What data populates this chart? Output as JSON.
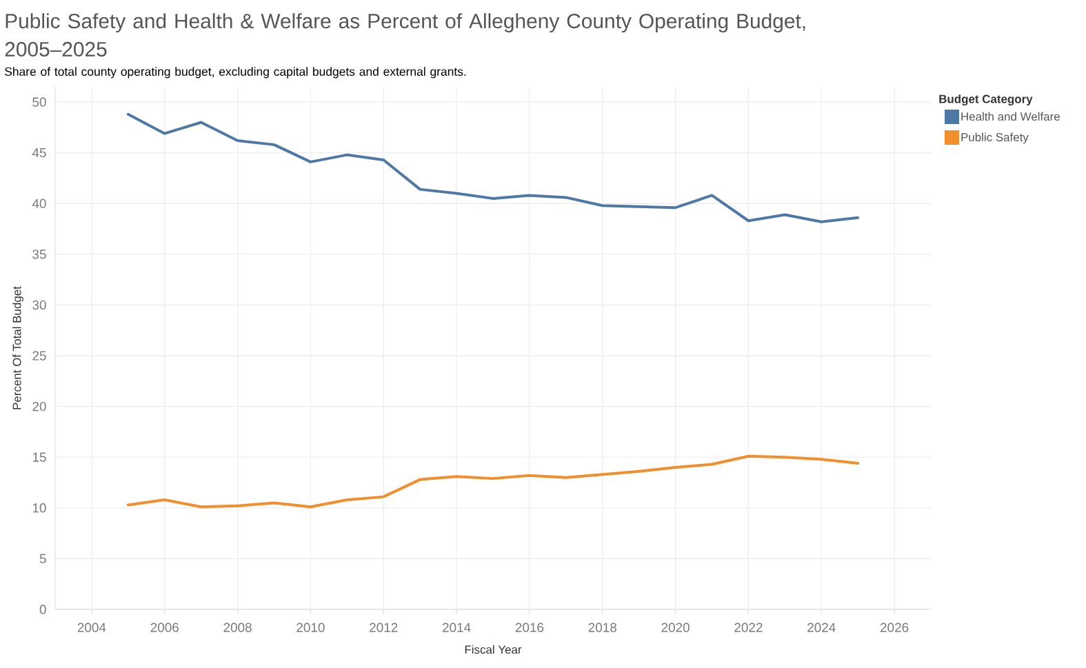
{
  "chart_data": {
    "type": "line",
    "title": "Public Safety and Health & Welfare as Percent of Allegheny County Operating Budget, 2005–2025",
    "subtitle": "Share of total county operating budget, excluding capital budgets and external grants.",
    "xlabel": "Fiscal Year",
    "ylabel": "Percent Of Total Budget",
    "legend_title": "Budget Category",
    "x": [
      2005,
      2006,
      2007,
      2008,
      2009,
      2010,
      2011,
      2012,
      2013,
      2014,
      2015,
      2016,
      2017,
      2018,
      2019,
      2020,
      2021,
      2022,
      2023,
      2024,
      2025
    ],
    "series": [
      {
        "name": "Health and Welfare",
        "color": "#4e79a7",
        "values": [
          48.8,
          46.9,
          48.0,
          46.2,
          45.8,
          44.1,
          44.8,
          44.3,
          41.4,
          41.0,
          40.5,
          40.8,
          40.6,
          39.8,
          39.7,
          39.6,
          40.8,
          38.3,
          38.9,
          38.2,
          38.6
        ]
      },
      {
        "name": "Public Safety",
        "color": "#f28e2b",
        "values": [
          10.3,
          10.8,
          10.1,
          10.2,
          10.5,
          10.1,
          10.8,
          11.1,
          12.8,
          13.1,
          12.9,
          13.2,
          13.0,
          13.3,
          13.6,
          14.0,
          14.3,
          15.1,
          15.0,
          14.8,
          14.4
        ]
      }
    ],
    "xlim": [
      2003,
      2027
    ],
    "ylim": [
      0,
      51.5
    ],
    "xticks": [
      2004,
      2006,
      2008,
      2010,
      2012,
      2014,
      2016,
      2018,
      2020,
      2022,
      2024,
      2026
    ],
    "yticks": [
      0,
      5,
      10,
      15,
      20,
      25,
      30,
      35,
      40,
      45,
      50
    ],
    "grid": true,
    "legend": "right"
  }
}
